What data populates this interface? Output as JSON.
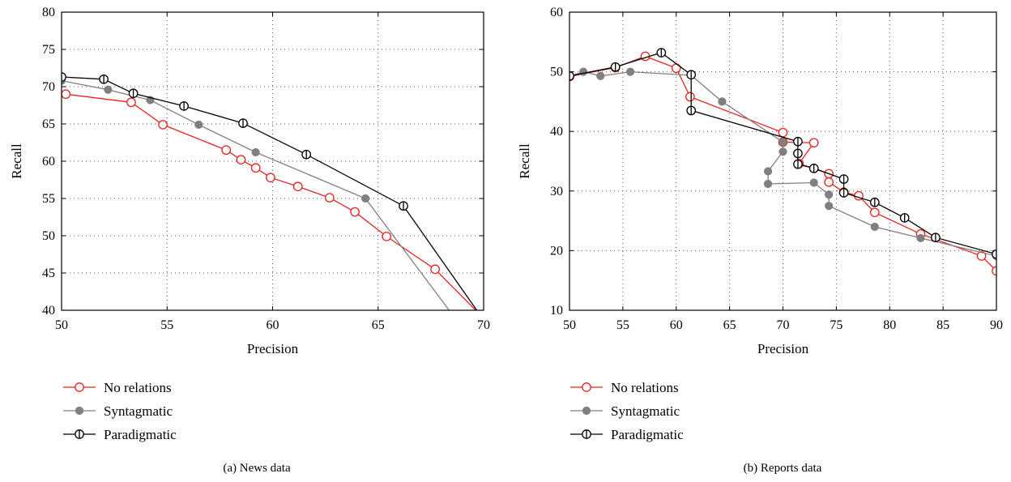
{
  "chart_data": [
    {
      "type": "line",
      "caption": "(a)  News data",
      "xlabel": "Precision",
      "ylabel": "Recall",
      "xlim": [
        50,
        70
      ],
      "ylim": [
        40,
        80
      ],
      "xticks": [
        50,
        55,
        60,
        65,
        70
      ],
      "yticks": [
        40,
        45,
        50,
        55,
        60,
        65,
        70,
        75,
        80
      ],
      "grid": "dotted",
      "legend_position": "below",
      "series": [
        {
          "name": "No relations",
          "color": "#e8221f",
          "marker": "open-circle",
          "points": [
            [
              50.2,
              69.0
            ],
            [
              53.3,
              67.9
            ],
            [
              54.8,
              64.9
            ],
            [
              57.8,
              61.5
            ],
            [
              58.5,
              60.2
            ],
            [
              59.2,
              59.1
            ],
            [
              59.9,
              57.8
            ],
            [
              61.2,
              56.6
            ],
            [
              62.7,
              55.1
            ],
            [
              63.9,
              53.2
            ],
            [
              65.4,
              49.9
            ],
            [
              67.7,
              45.5
            ],
            [
              69.8,
              39.5
            ]
          ]
        },
        {
          "name": "Syntagmatic",
          "color": "#808080",
          "marker": "filled-circle",
          "points": [
            [
              50.0,
              70.8
            ],
            [
              52.2,
              69.6
            ],
            [
              54.2,
              68.2
            ],
            [
              56.5,
              64.9
            ],
            [
              59.2,
              61.2
            ],
            [
              64.4,
              55.0
            ],
            [
              68.5,
              39.5
            ]
          ]
        },
        {
          "name": "Paradigmatic",
          "color": "#000000",
          "marker": "crossed-circle",
          "points": [
            [
              50.0,
              71.3
            ],
            [
              52.0,
              71.0
            ],
            [
              53.4,
              69.1
            ],
            [
              55.8,
              67.4
            ],
            [
              58.6,
              65.1
            ],
            [
              61.6,
              60.9
            ],
            [
              66.2,
              54.0
            ],
            [
              69.8,
              39.5
            ]
          ]
        }
      ]
    },
    {
      "type": "line",
      "caption": "(b)  Reports data",
      "xlabel": "Precision",
      "ylabel": "Recall",
      "xlim": [
        50,
        90
      ],
      "ylim": [
        10,
        60
      ],
      "xticks": [
        50,
        55,
        60,
        65,
        70,
        75,
        80,
        85,
        90
      ],
      "yticks": [
        10,
        20,
        30,
        40,
        50,
        60
      ],
      "grid": "dotted",
      "legend_position": "below",
      "series": [
        {
          "name": "No relations",
          "color": "#e8221f",
          "marker": "open-circle",
          "points": [
            [
              50.0,
              49.2
            ],
            [
              54.3,
              50.7
            ],
            [
              57.1,
              52.6
            ],
            [
              60.0,
              50.6
            ],
            [
              61.3,
              45.8
            ],
            [
              70.0,
              39.8
            ],
            [
              70.0,
              38.2
            ],
            [
              72.9,
              38.1
            ],
            [
              71.5,
              34.6
            ],
            [
              74.3,
              32.9
            ],
            [
              74.3,
              31.5
            ],
            [
              75.7,
              29.8
            ],
            [
              77.1,
              29.2
            ],
            [
              78.6,
              26.4
            ],
            [
              82.9,
              22.8
            ],
            [
              88.6,
              19.1
            ],
            [
              90.0,
              16.6
            ]
          ]
        },
        {
          "name": "Syntagmatic",
          "color": "#808080",
          "marker": "filled-circle",
          "points": [
            [
              50.0,
              49.2
            ],
            [
              51.3,
              50.0
            ],
            [
              52.9,
              49.3
            ],
            [
              55.7,
              50.0
            ],
            [
              61.4,
              49.4
            ],
            [
              64.3,
              45.0
            ],
            [
              70.0,
              38.2
            ],
            [
              70.0,
              36.6
            ],
            [
              68.6,
              33.3
            ],
            [
              68.6,
              31.2
            ],
            [
              72.9,
              31.4
            ],
            [
              74.3,
              29.4
            ],
            [
              74.3,
              27.5
            ],
            [
              78.6,
              24.0
            ],
            [
              82.9,
              22.1
            ],
            [
              90.0,
              19.1
            ]
          ]
        },
        {
          "name": "Paradigmatic",
          "color": "#000000",
          "marker": "crossed-circle",
          "points": [
            [
              50.0,
              49.3
            ],
            [
              54.3,
              50.8
            ],
            [
              58.6,
              53.2
            ],
            [
              61.4,
              49.5
            ],
            [
              61.4,
              43.5
            ],
            [
              71.4,
              38.3
            ],
            [
              71.4,
              36.3
            ],
            [
              71.4,
              34.5
            ],
            [
              72.9,
              33.8
            ],
            [
              75.7,
              32.0
            ],
            [
              75.7,
              29.7
            ],
            [
              78.6,
              28.1
            ],
            [
              81.4,
              25.5
            ],
            [
              84.3,
              22.2
            ],
            [
              90.0,
              19.4
            ]
          ]
        }
      ]
    }
  ]
}
